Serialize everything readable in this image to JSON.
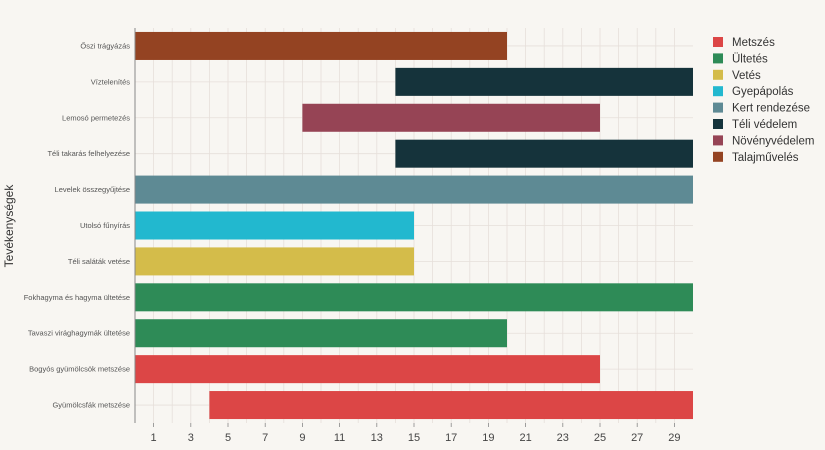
{
  "chart_data": {
    "type": "bar",
    "orientation": "horizontal-range",
    "title": "",
    "xlabel": "",
    "ylabel": "Tevékenységek",
    "xlim": [
      0,
      30
    ],
    "xticks": [
      1,
      3,
      5,
      7,
      9,
      11,
      13,
      15,
      17,
      19,
      21,
      23,
      25,
      27,
      29
    ],
    "grid": true,
    "legend_position": "right",
    "categories": [
      "Őszi trágyázás",
      "Víztelenítés",
      "Lemosó permetezés",
      "Téli takarás felhelyezése",
      "Levelek összegyűjtése",
      "Utolsó fűnyírás",
      "Téli saláták vetése",
      "Fokhagyma és hagyma ültetése",
      "Tavaszi virághagymák ültetése",
      "Bogyós gyümölcsök metszése",
      "Gyümölcsfák metszése"
    ],
    "bars": [
      {
        "task": "Őszi trágyázás",
        "start": 0,
        "end": 20,
        "series": "Talajművelés"
      },
      {
        "task": "Víztelenítés",
        "start": 14,
        "end": 30,
        "series": "Téli védelem"
      },
      {
        "task": "Lemosó permetezés",
        "start": 9,
        "end": 25,
        "series": "Növényvédelem"
      },
      {
        "task": "Téli takarás felhelyezése",
        "start": 14,
        "end": 30,
        "series": "Téli védelem"
      },
      {
        "task": "Levelek összegyűjtése",
        "start": 0,
        "end": 30,
        "series": "Kert rendezése"
      },
      {
        "task": "Utolsó fűnyírás",
        "start": 0,
        "end": 15,
        "series": "Gyepápolás"
      },
      {
        "task": "Téli saláták vetése",
        "start": 0,
        "end": 15,
        "series": "Vetés"
      },
      {
        "task": "Fokhagyma és hagyma ültetése",
        "start": 0,
        "end": 30,
        "series": "Ültetés"
      },
      {
        "task": "Tavaszi virághagymák ültetése",
        "start": 0,
        "end": 20,
        "series": "Ültetés"
      },
      {
        "task": "Bogyós gyümölcsök metszése",
        "start": 0,
        "end": 25,
        "series": "Metszés"
      },
      {
        "task": "Gyümölcsfák metszése",
        "start": 4,
        "end": 30,
        "series": "Metszés"
      }
    ],
    "series": [
      {
        "name": "Metszés",
        "color": "#dc4646"
      },
      {
        "name": "Ültetés",
        "color": "#2e8b57"
      },
      {
        "name": "Vetés",
        "color": "#d4bc4a"
      },
      {
        "name": "Gyepápolás",
        "color": "#22b8cf"
      },
      {
        "name": "Kert rendezése",
        "color": "#5e8a94"
      },
      {
        "name": "Téli védelem",
        "color": "#15333b"
      },
      {
        "name": "Növényvédelem",
        "color": "#964455"
      },
      {
        "name": "Talajművelés",
        "color": "#944322"
      }
    ]
  }
}
